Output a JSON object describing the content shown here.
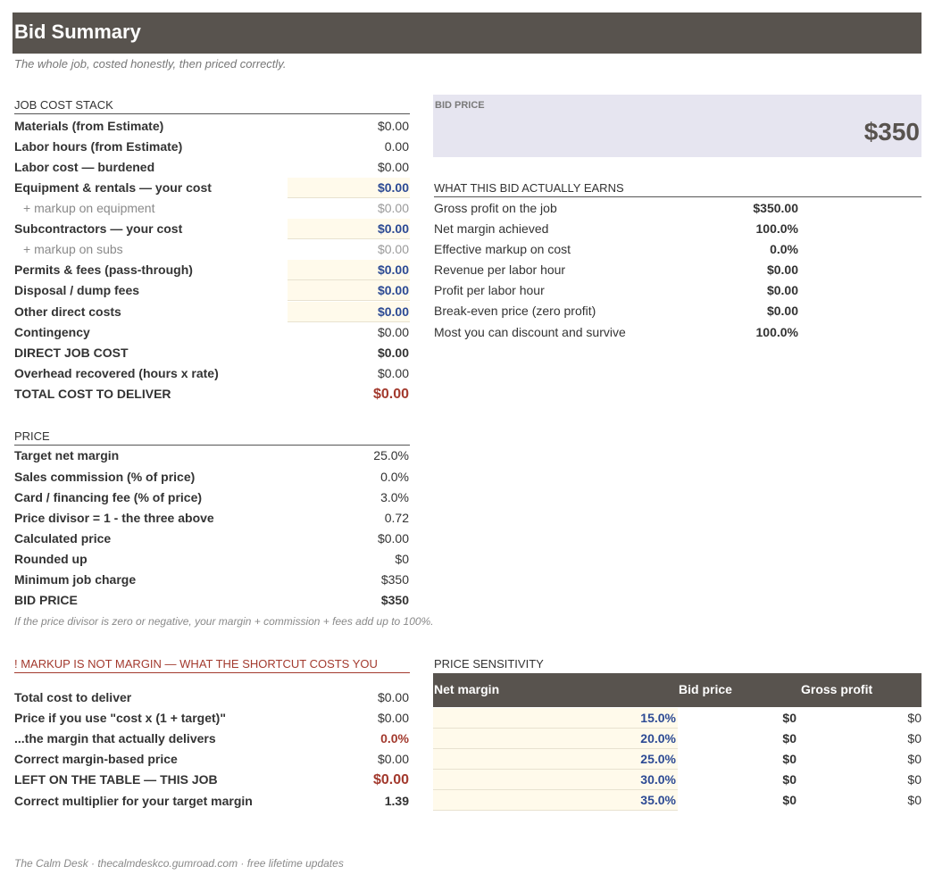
{
  "header": {
    "title": "Bid Summary",
    "subtitle": "The whole job, costed honestly, then priced correctly."
  },
  "job_cost_stack": {
    "heading": "JOB COST STACK",
    "rows": [
      {
        "label": "Materials  (from Estimate)",
        "value": "$0.00"
      },
      {
        "label": "Labor hours  (from Estimate)",
        "value": "0.00"
      },
      {
        "label": "Labor cost — burdened",
        "value": "$0.00"
      },
      {
        "label": "Equipment & rentals — your cost",
        "value": "$0.00"
      },
      {
        "label": "+ markup on equipment",
        "value": "$0.00"
      },
      {
        "label": "Subcontractors — your cost",
        "value": "$0.00"
      },
      {
        "label": "+ markup on subs",
        "value": "$0.00"
      },
      {
        "label": "Permits & fees  (pass-through)",
        "value": "$0.00"
      },
      {
        "label": "Disposal / dump fees",
        "value": "$0.00"
      },
      {
        "label": "Other direct costs",
        "value": "$0.00"
      },
      {
        "label": "Contingency",
        "value": "$0.00"
      },
      {
        "label": "DIRECT JOB COST",
        "value": "$0.00"
      },
      {
        "label": "Overhead recovered  (hours x rate)",
        "value": "$0.00"
      },
      {
        "label": "TOTAL COST TO DELIVER",
        "value": "$0.00"
      }
    ]
  },
  "bid_price_box": {
    "label": "BID PRICE",
    "value": "$350"
  },
  "earnings": {
    "heading": "WHAT THIS BID ACTUALLY EARNS",
    "rows": [
      {
        "label": "Gross profit on the job",
        "value": "$350.00"
      },
      {
        "label": "Net margin achieved",
        "value": "100.0%"
      },
      {
        "label": "Effective markup on cost",
        "value": "0.0%"
      },
      {
        "label": "Revenue per labor hour",
        "value": "$0.00"
      },
      {
        "label": "Profit per labor hour",
        "value": "$0.00"
      },
      {
        "label": "Break-even price (zero profit)",
        "value": "$0.00"
      },
      {
        "label": "Most you can discount and survive",
        "value": "100.0%"
      }
    ]
  },
  "price": {
    "heading": "PRICE",
    "rows": [
      {
        "label": "Target net margin",
        "value": "25.0%"
      },
      {
        "label": "Sales commission (% of price)",
        "value": "0.0%"
      },
      {
        "label": "Card / financing fee (% of price)",
        "value": "3.0%"
      },
      {
        "label": "Price divisor  =  1 - the three above",
        "value": "0.72"
      },
      {
        "label": "Calculated price",
        "value": "$0.00"
      },
      {
        "label": "Rounded up",
        "value": "$0"
      },
      {
        "label": "Minimum job charge",
        "value": "$350"
      },
      {
        "label": "BID PRICE",
        "value": "$350"
      }
    ],
    "note": "If the price divisor is zero or negative, your margin + commission + fees add up to 100%."
  },
  "markup": {
    "heading": "!  MARKUP IS NOT MARGIN — WHAT THE SHORTCUT COSTS YOU",
    "rows": [
      {
        "label": "Total cost to deliver",
        "value": "$0.00"
      },
      {
        "label": "Price if you use \"cost x (1 + target)\"",
        "value": "$0.00"
      },
      {
        "label": "...the margin that actually delivers",
        "value": "0.0%"
      },
      {
        "label": "Correct margin-based price",
        "value": "$0.00"
      },
      {
        "label": "LEFT ON THE TABLE — THIS JOB",
        "value": "$0.00"
      },
      {
        "label": "Correct multiplier for your target margin",
        "value": "1.39"
      }
    ]
  },
  "sensitivity": {
    "heading": "PRICE SENSITIVITY",
    "columns": [
      "Net margin",
      "Bid price",
      "Gross profit"
    ],
    "rows": [
      {
        "margin": "15.0%",
        "bid": "$0",
        "profit": "$0"
      },
      {
        "margin": "20.0%",
        "bid": "$0",
        "profit": "$0"
      },
      {
        "margin": "25.0%",
        "bid": "$0",
        "profit": "$0"
      },
      {
        "margin": "30.0%",
        "bid": "$0",
        "profit": "$0"
      },
      {
        "margin": "35.0%",
        "bid": "$0",
        "profit": "$0"
      }
    ]
  },
  "footer": {
    "text": "The Calm Desk  ·  thecalmdeskco.gumroad.com  ·  free lifetime updates"
  },
  "colors": {
    "banner": "#58534e",
    "input_blue": "#2c4a94",
    "alert_red": "#a33a2e",
    "bid_box": "#e6e5f0",
    "input_cell": "#fffaeb"
  }
}
